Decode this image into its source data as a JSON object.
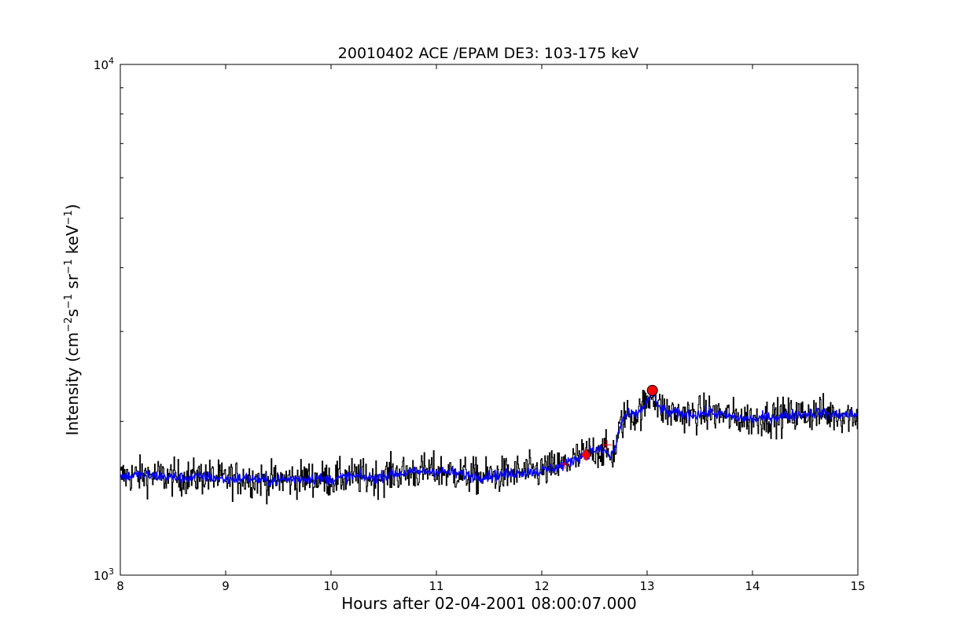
{
  "chart_data": {
    "type": "line",
    "title": "20010402 ACE /EPAM DE3: 103-175 keV",
    "xlabel": "Hours after 02-04-2001 08:00:07.000",
    "ylabel": {
      "prefix": "Intensity (cm",
      "sup1": "−2",
      "mid1": "s",
      "sup2": "−1",
      "mid2": " sr",
      "sup3": "−1",
      "mid3": " keV",
      "sup4": "−1",
      "suffix": ")"
    },
    "x_range": [
      8,
      15
    ],
    "y_range": [
      1000,
      10000
    ],
    "y_scale": "log",
    "x_ticks": [
      "8",
      "9",
      "10",
      "11",
      "12",
      "13",
      "14",
      "15"
    ],
    "y_ticks": [
      {
        "base": "10",
        "exp": "3"
      },
      {
        "base": "10",
        "exp": "4"
      }
    ],
    "grid": false,
    "series": [
      {
        "color": "#000000",
        "style": "step",
        "x": [
          8.0,
          8.2,
          8.4,
          8.6,
          8.8,
          9.0,
          9.2,
          9.4,
          9.6,
          9.8,
          10.0,
          10.2,
          10.4,
          10.6,
          10.8,
          11.0,
          11.2,
          11.4,
          11.6,
          11.8,
          12.0,
          12.2,
          12.3,
          12.4,
          12.5,
          12.6,
          12.65,
          12.7,
          12.75,
          12.8,
          12.9,
          13.0,
          13.05,
          13.1,
          13.2,
          13.4,
          13.6,
          13.8,
          14.0,
          14.2,
          14.4,
          14.6,
          14.8,
          15.0
        ],
        "y": [
          1560,
          1570,
          1560,
          1550,
          1560,
          1540,
          1550,
          1530,
          1540,
          1550,
          1540,
          1560,
          1550,
          1580,
          1590,
          1600,
          1580,
          1560,
          1570,
          1590,
          1600,
          1640,
          1680,
          1720,
          1760,
          1750,
          1700,
          1780,
          1980,
          2060,
          2060,
          2180,
          2300,
          2140,
          2080,
          2060,
          2080,
          2040,
          2020,
          2040,
          2060,
          2080,
          2060,
          2060
        ],
        "noise": 0.08
      },
      {
        "color": "#0000ff",
        "style": "line",
        "x": [
          8.0,
          8.2,
          8.4,
          8.6,
          8.8,
          9.0,
          9.2,
          9.4,
          9.6,
          9.8,
          10.0,
          10.2,
          10.4,
          10.6,
          10.8,
          11.0,
          11.2,
          11.4,
          11.6,
          11.8,
          12.0,
          12.2,
          12.3,
          12.4,
          12.5,
          12.6,
          12.65,
          12.7,
          12.75,
          12.8,
          12.9,
          13.0,
          13.05,
          13.1,
          13.2,
          13.4,
          13.6,
          13.8,
          14.0,
          14.2,
          14.4,
          14.6,
          14.8,
          15.0
        ],
        "y": [
          1560,
          1570,
          1560,
          1550,
          1560,
          1540,
          1550,
          1530,
          1540,
          1550,
          1540,
          1560,
          1550,
          1580,
          1590,
          1600,
          1580,
          1560,
          1570,
          1590,
          1600,
          1640,
          1680,
          1720,
          1760,
          1750,
          1700,
          1780,
          1980,
          2060,
          2060,
          2180,
          2300,
          2140,
          2080,
          2060,
          2080,
          2040,
          2020,
          2040,
          2060,
          2080,
          2060,
          2060
        ],
        "noise": 0.025
      }
    ],
    "markers": [
      {
        "shape": "plus",
        "x": 12.22,
        "y": 1650,
        "color": "#ff0000"
      },
      {
        "shape": "diamond",
        "x": 12.42,
        "y": 1720,
        "color": "#ff0000"
      },
      {
        "shape": "plus",
        "x": 12.62,
        "y": 1800,
        "color": "#ff0000"
      },
      {
        "shape": "circle",
        "x": 13.05,
        "y": 2300,
        "color": "#ff0000"
      }
    ]
  }
}
